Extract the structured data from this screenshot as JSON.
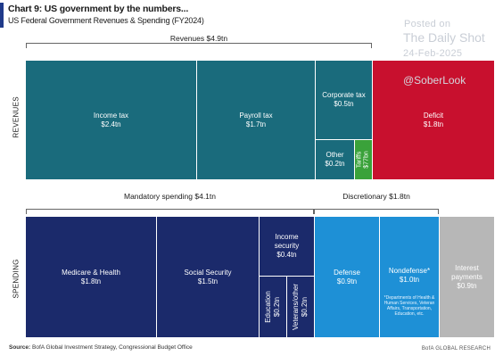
{
  "header": {
    "title": "Chart 9: US government by the numbers...",
    "subtitle": "US Federal Government Revenues & Spending (FY2024)"
  },
  "watermark": {
    "line1": "Posted on",
    "line2": "The Daily Shot",
    "line3": "24-Feb-2025",
    "line4": "@SoberLook"
  },
  "side_labels": {
    "revenues": "REVENUES",
    "spending": "SPENDING"
  },
  "groups": {
    "revenues": "Revenues $4.9tn",
    "mandatory": "Mandatory spending $4.1tn",
    "discretionary": "Discretionary $1.8tn"
  },
  "footer": {
    "source_label": "Source:",
    "source_text": "BofA Global Investment Strategy, Congressional Budget Office",
    "brand": "BofA GLOBAL RESEARCH"
  },
  "colors": {
    "accent": "#1f3a8a",
    "revenue_teal": "#1a6b7c",
    "tariffs_green": "#3aa23a",
    "deficit_red": "#c8102e",
    "mandatory_navy": "#1b2a6b",
    "discretionary_blue": "#1e90d6",
    "interest_gray": "#b7b7b7"
  },
  "chart_data": {
    "type": "treemap",
    "unit": "$tn",
    "rows": [
      {
        "name": "REVENUES",
        "items": [
          {
            "label": "Income tax",
            "value_text": "$2.4tn",
            "value": 2.4
          },
          {
            "label": "Payroll tax",
            "value_text": "$1.7tn",
            "value": 1.7
          },
          {
            "label": "Corporate tax",
            "value_text": "$0.5tn",
            "value": 0.5
          },
          {
            "label": "Other",
            "value_text": "$0.2tn",
            "value": 0.2
          },
          {
            "label": "Tariffs",
            "value_text": "$77bn",
            "value": 0.077
          },
          {
            "label": "Deficit",
            "value_text": "$1.8tn",
            "value": 1.8
          }
        ]
      },
      {
        "name": "SPENDING",
        "items": [
          {
            "label": "Medicare & Health",
            "value_text": "$1.8tn",
            "value": 1.8
          },
          {
            "label": "Social Security",
            "value_text": "$1.5tn",
            "value": 1.5
          },
          {
            "label": "Income security",
            "value_text": "$0.4tn",
            "value": 0.4
          },
          {
            "label": "Education",
            "value_text": "$0.2tn",
            "value": 0.2
          },
          {
            "label": "Veterans/other",
            "value_text": "$0.2tn",
            "value": 0.2
          },
          {
            "label": "Defense",
            "value_text": "$0.9tn",
            "value": 0.9
          },
          {
            "label": "Nondefense*",
            "value_text": "$1.0tn",
            "value": 1.0,
            "note": "*Departments of Health & Human Services, Veteran Affairs, Transportation, Education, etc."
          },
          {
            "label": "Interest payments",
            "value_text": "$0.9tn",
            "value": 0.9
          }
        ]
      }
    ]
  }
}
